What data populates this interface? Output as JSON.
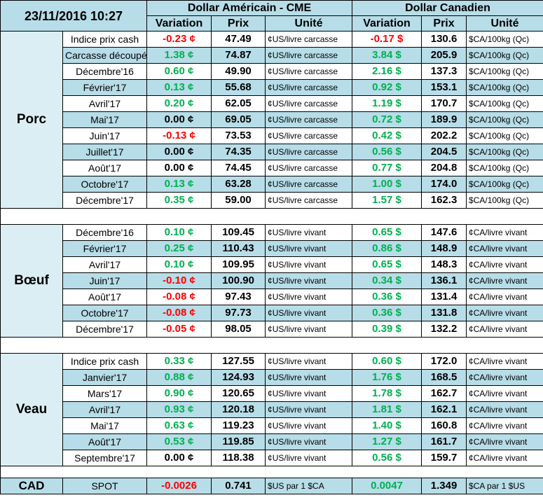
{
  "header": {
    "date": "23/11/2016 10:27",
    "usd_title": "Dollar Américain - CME",
    "cad_title": "Dollar Canadien",
    "col_variation": "Variation",
    "col_prix": "Prix",
    "col_unite": "Unité"
  },
  "colors": {
    "negative": "#ff0000",
    "positive": "#00b050",
    "header_bg": "#b7dde8",
    "stripe": "#b7dde8"
  },
  "sections": [
    {
      "name": "Porc",
      "rows": [
        {
          "label": "Indice prix cash",
          "usd_var": "-0.23 ¢",
          "usd_price": "47.49",
          "usd_unit": "¢US/livre carcasse",
          "cad_var": "-0.17 $",
          "cad_price": "130.6",
          "cad_unit": "$CA/100kg (Qc)"
        },
        {
          "label": "Carcasse découpée",
          "usd_var": "1.38 ¢",
          "usd_price": "74.87",
          "usd_unit": "¢US/livre carcasse",
          "cad_var": "3.84 $",
          "cad_price": "205.9",
          "cad_unit": "$CA/100kg (Qc)"
        },
        {
          "label": "Décembre'16",
          "usd_var": "0.60 ¢",
          "usd_price": "49.90",
          "usd_unit": "¢US/livre carcasse",
          "cad_var": "2.16 $",
          "cad_price": "137.3",
          "cad_unit": "$CA/100kg (Qc)"
        },
        {
          "label": "Février'17",
          "usd_var": "0.13 ¢",
          "usd_price": "55.68",
          "usd_unit": "¢US/livre carcasse",
          "cad_var": "0.92 $",
          "cad_price": "153.1",
          "cad_unit": "$CA/100kg (Qc)"
        },
        {
          "label": "Avril'17",
          "usd_var": "0.20 ¢",
          "usd_price": "62.05",
          "usd_unit": "¢US/livre carcasse",
          "cad_var": "1.19 $",
          "cad_price": "170.7",
          "cad_unit": "$CA/100kg (Qc)"
        },
        {
          "label": "Mai'17",
          "usd_var": "0.00 ¢",
          "usd_price": "69.05",
          "usd_unit": "¢US/livre carcasse",
          "cad_var": "0.72 $",
          "cad_price": "189.9",
          "cad_unit": "$CA/100kg (Qc)"
        },
        {
          "label": "Juin'17",
          "usd_var": "-0.13 ¢",
          "usd_price": "73.53",
          "usd_unit": "¢US/livre carcasse",
          "cad_var": "0.42 $",
          "cad_price": "202.2",
          "cad_unit": "$CA/100kg (Qc)"
        },
        {
          "label": "Juillet'17",
          "usd_var": "0.00 ¢",
          "usd_price": "74.35",
          "usd_unit": "¢US/livre carcasse",
          "cad_var": "0.56 $",
          "cad_price": "204.5",
          "cad_unit": "$CA/100kg (Qc)"
        },
        {
          "label": "Août'17",
          "usd_var": "0.00 ¢",
          "usd_price": "74.45",
          "usd_unit": "¢US/livre carcasse",
          "cad_var": "0.77 $",
          "cad_price": "204.8",
          "cad_unit": "$CA/100kg (Qc)"
        },
        {
          "label": "Octobre'17",
          "usd_var": "0.13 ¢",
          "usd_price": "63.28",
          "usd_unit": "¢US/livre carcasse",
          "cad_var": "1.00 $",
          "cad_price": "174.0",
          "cad_unit": "$CA/100kg (Qc)"
        },
        {
          "label": "Décembre'17",
          "usd_var": "0.35 ¢",
          "usd_price": "59.00",
          "usd_unit": "¢US/livre carcasse",
          "cad_var": "1.57 $",
          "cad_price": "162.3",
          "cad_unit": "$CA/100kg (Qc)"
        }
      ]
    },
    {
      "name": "Bœuf",
      "rows": [
        {
          "label": "Décembre'16",
          "usd_var": "0.10 ¢",
          "usd_price": "109.45",
          "usd_unit": "¢US/livre vivant",
          "cad_var": "0.65 $",
          "cad_price": "147.6",
          "cad_unit": "¢CA/livre vivant"
        },
        {
          "label": "Février'17",
          "usd_var": "0.25 ¢",
          "usd_price": "110.43",
          "usd_unit": "¢US/livre vivant",
          "cad_var": "0.86 $",
          "cad_price": "148.9",
          "cad_unit": "¢CA/livre vivant"
        },
        {
          "label": "Avril'17",
          "usd_var": "0.10 ¢",
          "usd_price": "109.95",
          "usd_unit": "¢US/livre vivant",
          "cad_var": "0.65 $",
          "cad_price": "148.3",
          "cad_unit": "¢CA/livre vivant"
        },
        {
          "label": "Juin'17",
          "usd_var": "-0.10 ¢",
          "usd_price": "100.90",
          "usd_unit": "¢US/livre vivant",
          "cad_var": "0.34 $",
          "cad_price": "136.1",
          "cad_unit": "¢CA/livre vivant"
        },
        {
          "label": "Août'17",
          "usd_var": "-0.08 ¢",
          "usd_price": "97.43",
          "usd_unit": "¢US/livre vivant",
          "cad_var": "0.36 $",
          "cad_price": "131.4",
          "cad_unit": "¢CA/livre vivant"
        },
        {
          "label": "Octobre'17",
          "usd_var": "-0.08 ¢",
          "usd_price": "97.73",
          "usd_unit": "¢US/livre vivant",
          "cad_var": "0.36 $",
          "cad_price": "131.8",
          "cad_unit": "¢CA/livre vivant"
        },
        {
          "label": "Décembre'17",
          "usd_var": "-0.05 ¢",
          "usd_price": "98.05",
          "usd_unit": "¢US/livre vivant",
          "cad_var": "0.39 $",
          "cad_price": "132.2",
          "cad_unit": "¢CA/livre vivant"
        }
      ]
    },
    {
      "name": "Veau",
      "rows": [
        {
          "label": "Indice prix cash",
          "usd_var": "0.33 ¢",
          "usd_price": "127.55",
          "usd_unit": "¢US/livre vivant",
          "cad_var": "0.60 $",
          "cad_price": "172.0",
          "cad_unit": "¢CA/livre vivant"
        },
        {
          "label": "Janvier'17",
          "usd_var": "0.88 ¢",
          "usd_price": "124.93",
          "usd_unit": "¢US/livre vivant",
          "cad_var": "1.76 $",
          "cad_price": "168.5",
          "cad_unit": "¢CA/livre vivant"
        },
        {
          "label": "Mars'17",
          "usd_var": "0.90 ¢",
          "usd_price": "120.65",
          "usd_unit": "¢US/livre vivant",
          "cad_var": "1.78 $",
          "cad_price": "162.7",
          "cad_unit": "¢CA/livre vivant"
        },
        {
          "label": "Avril'17",
          "usd_var": "0.93 ¢",
          "usd_price": "120.18",
          "usd_unit": "¢US/livre vivant",
          "cad_var": "1.81 $",
          "cad_price": "162.1",
          "cad_unit": "¢CA/livre vivant"
        },
        {
          "label": "Mai'17",
          "usd_var": "0.63 ¢",
          "usd_price": "119.23",
          "usd_unit": "¢US/livre vivant",
          "cad_var": "1.40 $",
          "cad_price": "160.8",
          "cad_unit": "¢CA/livre vivant"
        },
        {
          "label": "Août'17",
          "usd_var": "0.53 ¢",
          "usd_price": "119.85",
          "usd_unit": "¢US/livre vivant",
          "cad_var": "1.27 $",
          "cad_price": "161.7",
          "cad_unit": "¢CA/livre vivant"
        },
        {
          "label": "Septembre'17",
          "usd_var": "0.00 ¢",
          "usd_price": "118.38",
          "usd_unit": "¢US/livre vivant",
          "cad_var": "0.56 $",
          "cad_price": "159.7",
          "cad_unit": "¢CA/livre vivant"
        }
      ]
    }
  ],
  "cad": {
    "name": "CAD",
    "label": "SPOT",
    "usd_var": "-0.0026",
    "usd_price": "0.741",
    "usd_unit": "$US par 1 $CA",
    "cad_var": "0.0047",
    "cad_price": "1.349",
    "cad_unit": "$CA par 1 $US"
  }
}
